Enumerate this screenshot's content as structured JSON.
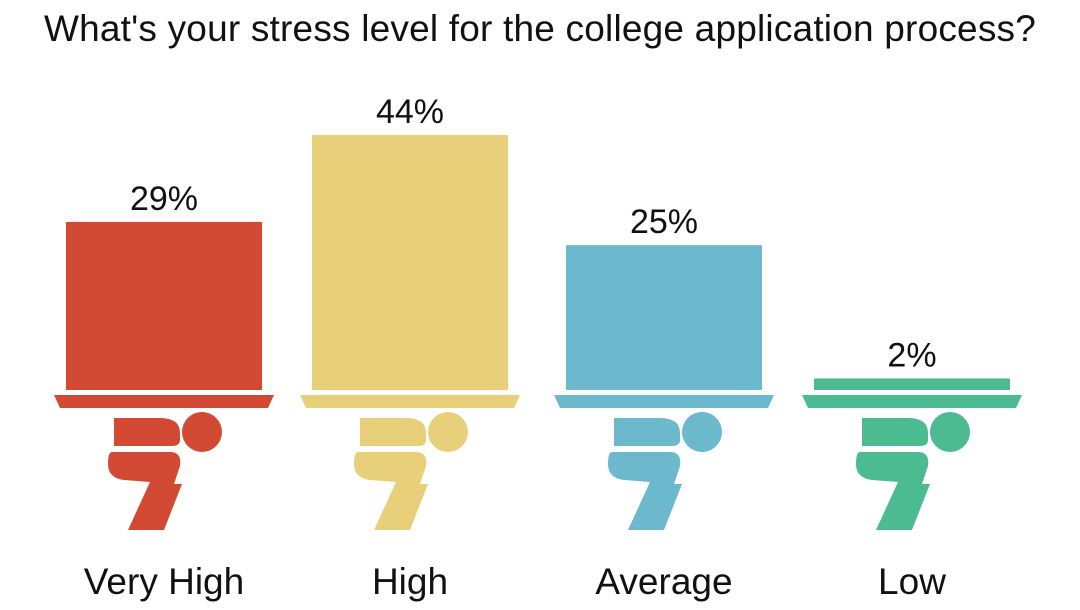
{
  "chart_data": {
    "type": "bar",
    "title": "What's your stress level for the college application process?",
    "categories": [
      "Very High",
      "High",
      "Average",
      "Low"
    ],
    "values": [
      29,
      44,
      25,
      2
    ],
    "value_labels": [
      "29%",
      "44%",
      "25%",
      "2%"
    ],
    "colors": [
      "#d24a34",
      "#e8d07a",
      "#6cb8cc",
      "#4dbb92"
    ],
    "unit": "%",
    "ylim": [
      0,
      44
    ],
    "grid": false,
    "legend": "none",
    "icons": [
      "person-lifting-icon",
      "person-lifting-icon",
      "person-lifting-icon",
      "person-lifting-icon"
    ]
  }
}
